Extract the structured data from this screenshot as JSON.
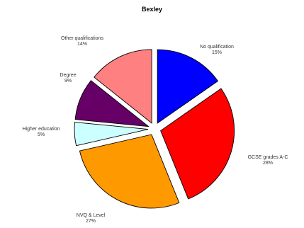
{
  "chart_data": {
    "type": "pie",
    "title": "Bexley",
    "slices": [
      {
        "label": "No qualification",
        "pct_label": "15%",
        "value": 15,
        "color": "#0000ff"
      },
      {
        "label": "GCSE grades A-C",
        "pct_label": "28%",
        "value": 28,
        "color": "#ff0000"
      },
      {
        "label": "NVQ & Level",
        "pct_label": "27%",
        "value": 27,
        "color": "#ff9900"
      },
      {
        "label": "Higher education",
        "pct_label": "5%",
        "value": 5,
        "color": "#ccffff"
      },
      {
        "label": "Degree",
        "pct_label": "9%",
        "value": 9,
        "color": "#660066"
      },
      {
        "label": "Other qualifications",
        "pct_label": "14%",
        "value": 14,
        "color": "#ff8080"
      }
    ],
    "legend": "none"
  }
}
